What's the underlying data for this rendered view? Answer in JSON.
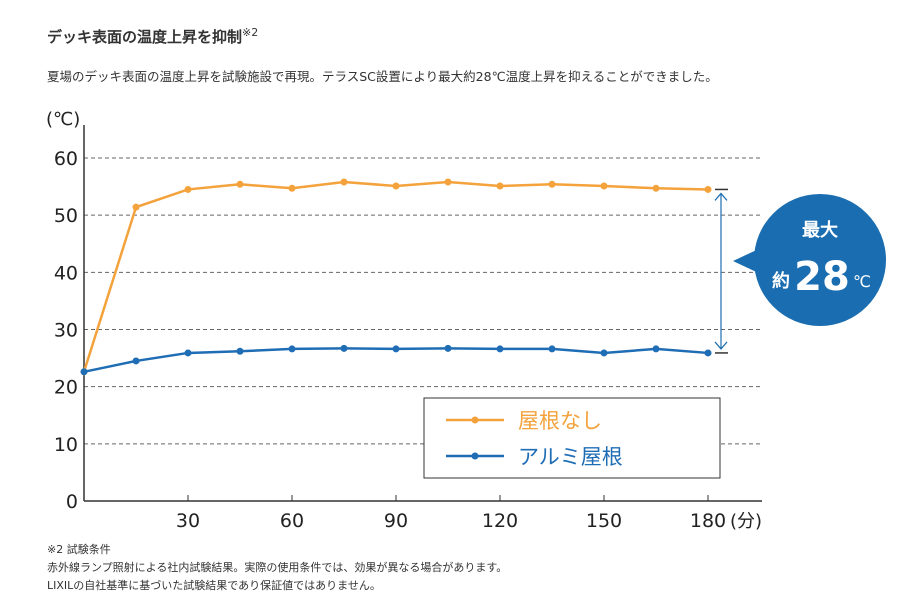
{
  "heading": {
    "title": "デッキ表面の温度上昇を抑制",
    "note_mark": "※2"
  },
  "description": "夏場のデッキ表面の温度上昇を試験施設で再現。テラスSC設置により最大約28℃温度上昇を抑えることができました。",
  "notes": [
    "※2 試験条件",
    "赤外線ランプ照射による社内試験結果。実際の使用条件では、効果が異なる場合があります。",
    "LIXILの自社基準に基づいた試験結果であり保証値ではありません。"
  ],
  "chart_data": {
    "type": "line",
    "ylabel": "(℃)",
    "xlabel": "(分)",
    "ylim": [
      0,
      60
    ],
    "xlim": [
      0,
      180
    ],
    "yticks": [
      0,
      10,
      20,
      30,
      40,
      50,
      60
    ],
    "xticks": [
      30,
      60,
      90,
      120,
      150,
      180
    ],
    "grid": "horizontal dashed",
    "legend_position": "bottom-right",
    "x": [
      0,
      15,
      30,
      45,
      60,
      75,
      90,
      105,
      120,
      135,
      150,
      165,
      180
    ],
    "series": [
      {
        "name": "屋根なし",
        "color": "#f4a23c",
        "values": [
          22.6,
          51.4,
          54.5,
          55.4,
          54.7,
          55.8,
          55.1,
          55.8,
          55.1,
          55.4,
          55.1,
          54.7,
          54.5
        ]
      },
      {
        "name": "アルミ屋根",
        "color": "#1f6db5",
        "values": [
          22.6,
          24.5,
          25.9,
          26.2,
          26.6,
          26.7,
          26.6,
          26.7,
          26.6,
          26.6,
          25.9,
          26.6,
          25.9
        ]
      }
    ],
    "annotation": {
      "line1": "最大",
      "prefix": "約",
      "value": "28",
      "unit": "℃",
      "color": "#1a6db0"
    }
  }
}
